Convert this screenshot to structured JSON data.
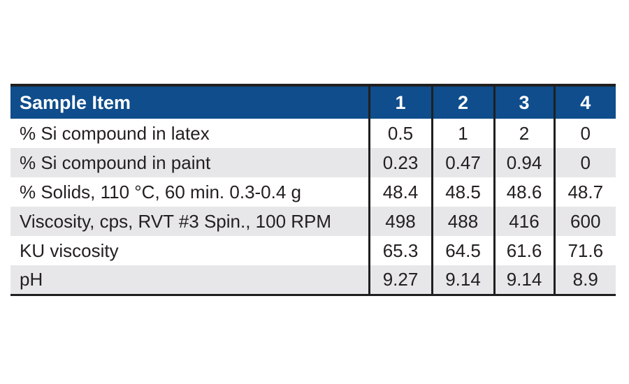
{
  "table": {
    "header": {
      "label": "Sample Item",
      "columns": [
        "1",
        "2",
        "3",
        "4"
      ]
    },
    "rows": [
      {
        "label": "% Si compound in latex",
        "values": [
          "0.5",
          "1",
          "2",
          "0"
        ]
      },
      {
        "label": "% Si compound in paint",
        "values": [
          "0.23",
          "0.47",
          "0.94",
          "0"
        ]
      },
      {
        "label": "% Solids, 110 °C, 60 min. 0.3-0.4 g",
        "values": [
          "48.4",
          "48.5",
          "48.6",
          "48.7"
        ]
      },
      {
        "label": "Viscosity, cps, RVT #3 Spin., 100 RPM",
        "values": [
          "498",
          "488",
          "416",
          "600"
        ]
      },
      {
        "label": "KU viscosity",
        "values": [
          "65.3",
          "64.5",
          "61.6",
          "71.6"
        ]
      },
      {
        "label": "pH",
        "values": [
          "9.27",
          "9.14",
          "9.14",
          "8.9"
        ]
      }
    ],
    "colors": {
      "header_bg": "#0f4d8c",
      "header_text": "#ffffff",
      "row_bg": "#ffffff",
      "row_alt_bg": "#e7e7e9",
      "rule": "#1f1f1f",
      "text": "#231f20"
    }
  }
}
